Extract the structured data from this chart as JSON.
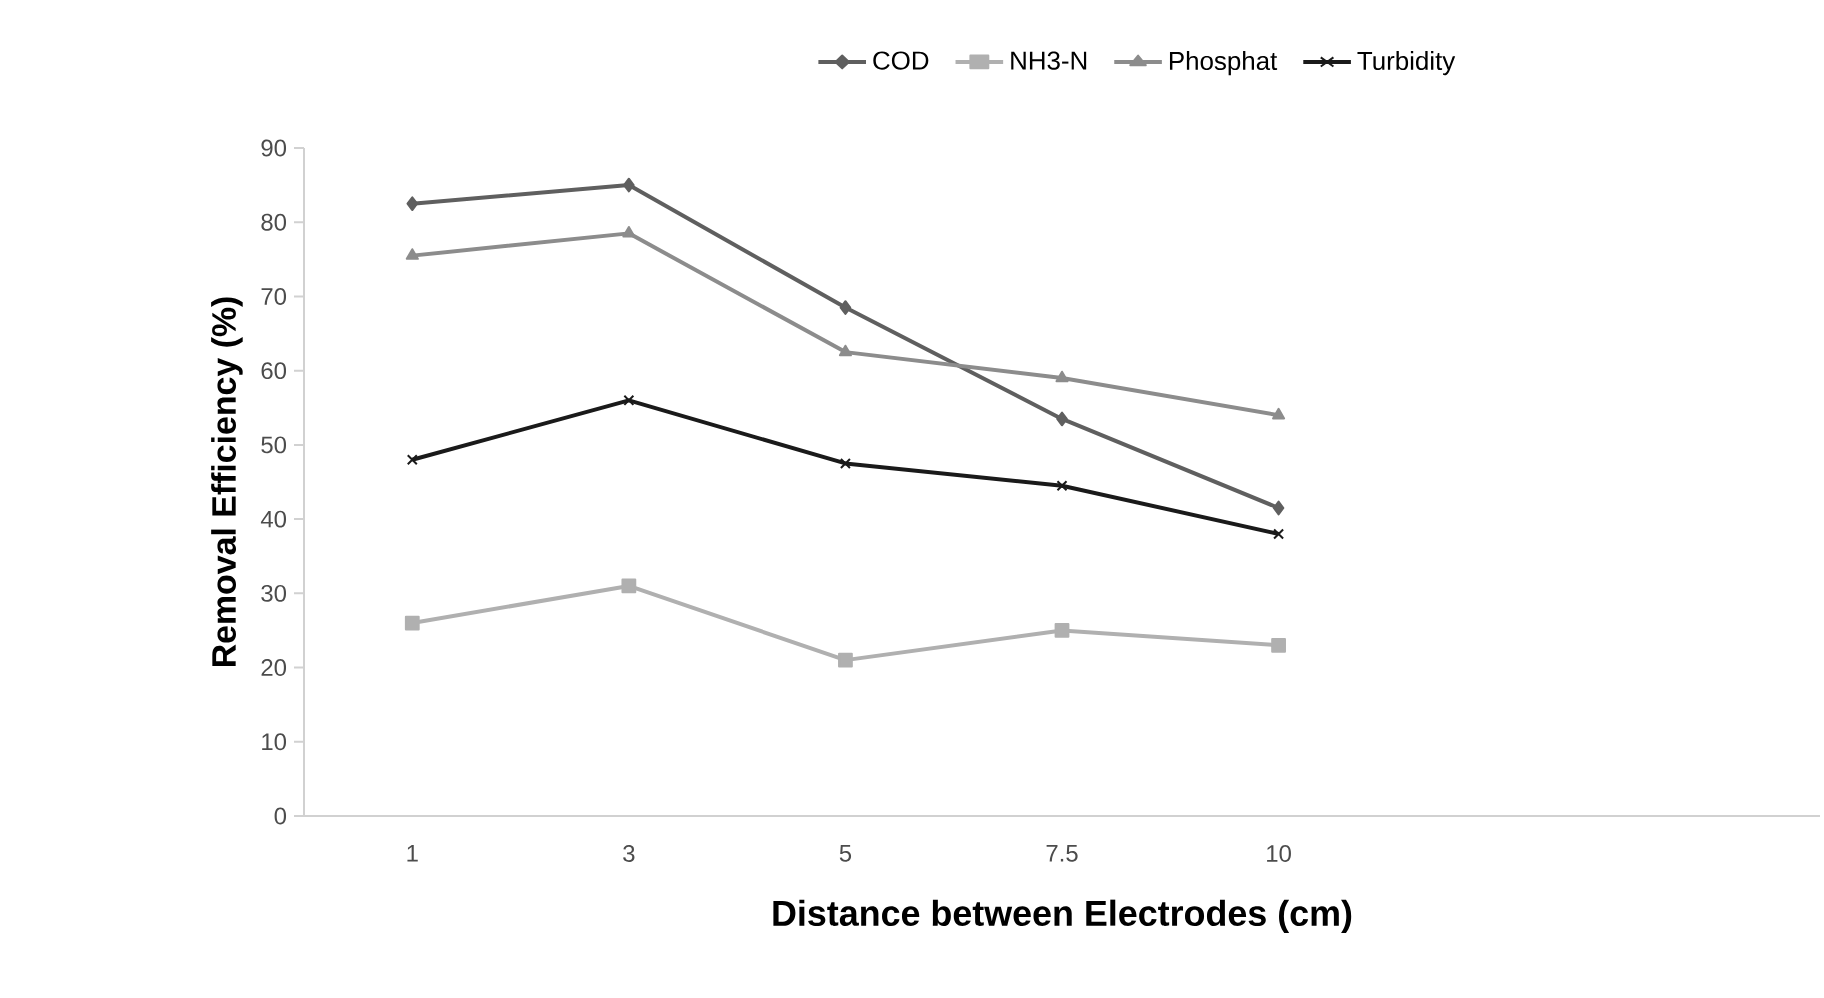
{
  "chart_data": {
    "type": "line",
    "xlabel": "Distance between Electrodes (cm)",
    "ylabel": "Removal Efficiency  (%)",
    "categories": [
      "1",
      "3",
      "5",
      "7.5",
      "10",
      null,
      null
    ],
    "series": [
      {
        "name": "COD",
        "color": "#5f5f5f",
        "marker": "diamond",
        "values": [
          82.5,
          85,
          68.5,
          53.5,
          41.5,
          null,
          null
        ]
      },
      {
        "name": "NH3-N",
        "color": "#b0b0b0",
        "marker": "square",
        "values": [
          26,
          31,
          21,
          25,
          23,
          null,
          null
        ]
      },
      {
        "name": "Phosphat",
        "color": "#8c8c8c",
        "marker": "triangle",
        "values": [
          75.5,
          78.5,
          62.5,
          59,
          54,
          null,
          null
        ]
      },
      {
        "name": "Turbidity",
        "color": "#1a1a1a",
        "marker": "cross",
        "values": [
          48,
          56,
          47.5,
          44.5,
          38,
          null,
          null
        ]
      }
    ],
    "ylim": [
      0,
      90
    ],
    "yticks": [
      0,
      10,
      20,
      30,
      40,
      50,
      60,
      70,
      80,
      90
    ],
    "grid": false,
    "legend": "top",
    "line_style": "solid"
  }
}
